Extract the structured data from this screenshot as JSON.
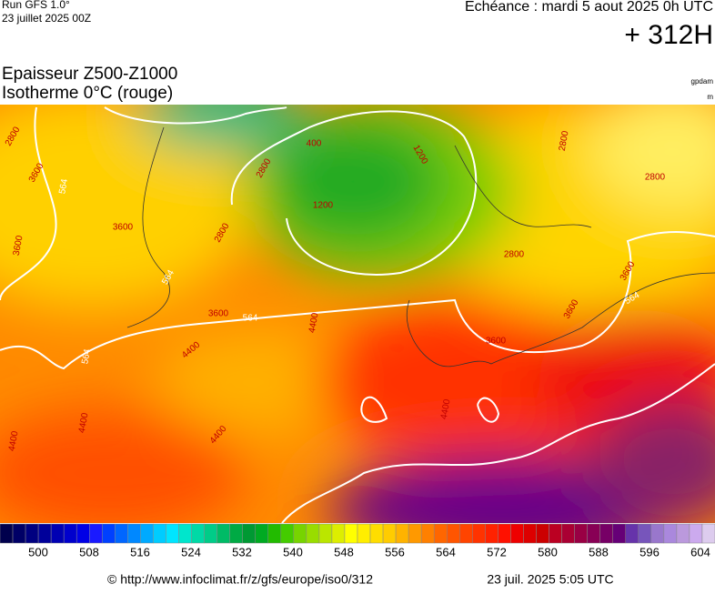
{
  "header": {
    "run": "Run GFS 1.0°",
    "run_date": "23 juillet 2025 00Z",
    "valid": "Echéance : mardi 5 aout 2025 0h UTC",
    "lead": "+ 312H"
  },
  "titles": {
    "line1": "Epaisseur Z500-Z1000",
    "line2": "Isotherme 0°C (rouge)",
    "unit1": "gpdam",
    "unit2": "m"
  },
  "map_labels": [
    "2800",
    "3600",
    "564",
    "3600",
    "564",
    "2800",
    "400",
    "1200",
    "2800",
    "1200",
    "3600",
    "564",
    "3600",
    "3600",
    "564",
    "3600",
    "2800",
    "2800",
    "2800",
    "3600",
    "4400",
    "4400",
    "4400",
    "4400",
    "4400",
    "564",
    "4400"
  ],
  "colorbar": {
    "colors": [
      "#00004d",
      "#000066",
      "#000080",
      "#00009a",
      "#0000b3",
      "#0000cd",
      "#0000e6",
      "#1a1aff",
      "#0040ff",
      "#0066ff",
      "#0088ff",
      "#00aaff",
      "#00ccff",
      "#00e5ff",
      "#00e6cc",
      "#00d9a6",
      "#00cc88",
      "#00bb66",
      "#00aa44",
      "#009933",
      "#00aa22",
      "#22bb00",
      "#44cc00",
      "#77d400",
      "#99dd00",
      "#bbe600",
      "#ddee00",
      "#ffff00",
      "#ffee00",
      "#ffdd00",
      "#ffcc00",
      "#ffb300",
      "#ff9900",
      "#ff8000",
      "#ff6600",
      "#ff5500",
      "#ff4400",
      "#ff3300",
      "#ff2200",
      "#ff1100",
      "#ee0000",
      "#dd0000",
      "#cc0000",
      "#bb0022",
      "#aa0033",
      "#990044",
      "#880055",
      "#770066",
      "#660077",
      "#6633aa",
      "#7755bb",
      "#9977cc",
      "#aa88dd",
      "#bb99dd",
      "#ccaaee",
      "#ddccee"
    ],
    "labels": [
      500,
      508,
      516,
      524,
      532,
      540,
      548,
      556,
      564,
      572,
      580,
      588,
      596,
      604
    ]
  },
  "footer": {
    "source": "© http://www.infoclimat.fr/z/gfs/europe/iso0/312",
    "generated": "23 juil. 2025  5:05 UTC"
  }
}
